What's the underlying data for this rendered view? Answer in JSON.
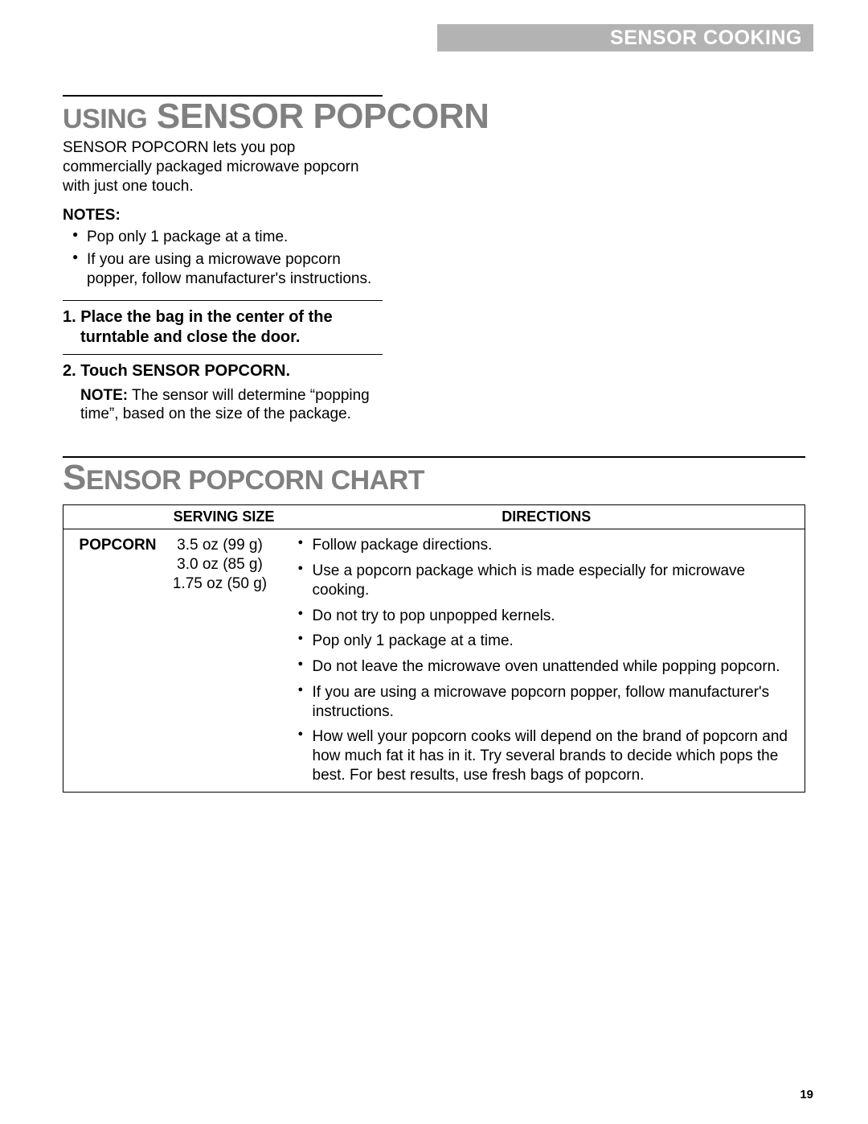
{
  "header": {
    "label": "SENSOR COOKING"
  },
  "section1": {
    "title_prefix": "U",
    "title_prefix_rest": "SING",
    "title_main": " SENSOR POPCORN",
    "intro": "SENSOR POPCORN lets you pop commercially packaged microwave popcorn with just one touch.",
    "notes_label": "NOTES:",
    "notes": [
      "Pop only 1 package at a time.",
      "If you are using a microwave popcorn popper, follow manufacturer's instructions."
    ],
    "step1": "1. Place the bag in the center of the turntable and close the door.",
    "step2": "2. Touch SENSOR POPCORN.",
    "step2_note_label": "NOTE:",
    "step2_note_text": " The sensor will determine “popping time”, based on the size of the package."
  },
  "section2": {
    "title_big": "S",
    "title_rest": "ENSOR POPCORN CHART",
    "columns": [
      "",
      "SERVING SIZE",
      "DIRECTIONS"
    ],
    "row": {
      "label": "POPCORN",
      "sizes": [
        "3.5 oz (99 g)",
        "3.0 oz (85 g)",
        "1.75 oz (50 g)"
      ],
      "directions": [
        "Follow package directions.",
        "Use a popcorn package which is made especially for microwave cooking.",
        "Do not try to pop unpopped kernels.",
        "Pop only 1 package at a time.",
        "Do not leave the microwave oven unattended while popping popcorn.",
        "If you are using a microwave popcorn popper, follow manufacturer's instructions.",
        "How well your popcorn cooks will depend on the brand of popcorn and how much fat it has in it. Try several brands to decide which pops the best. For best results, use fresh bags of popcorn."
      ]
    }
  },
  "page_number": "19"
}
